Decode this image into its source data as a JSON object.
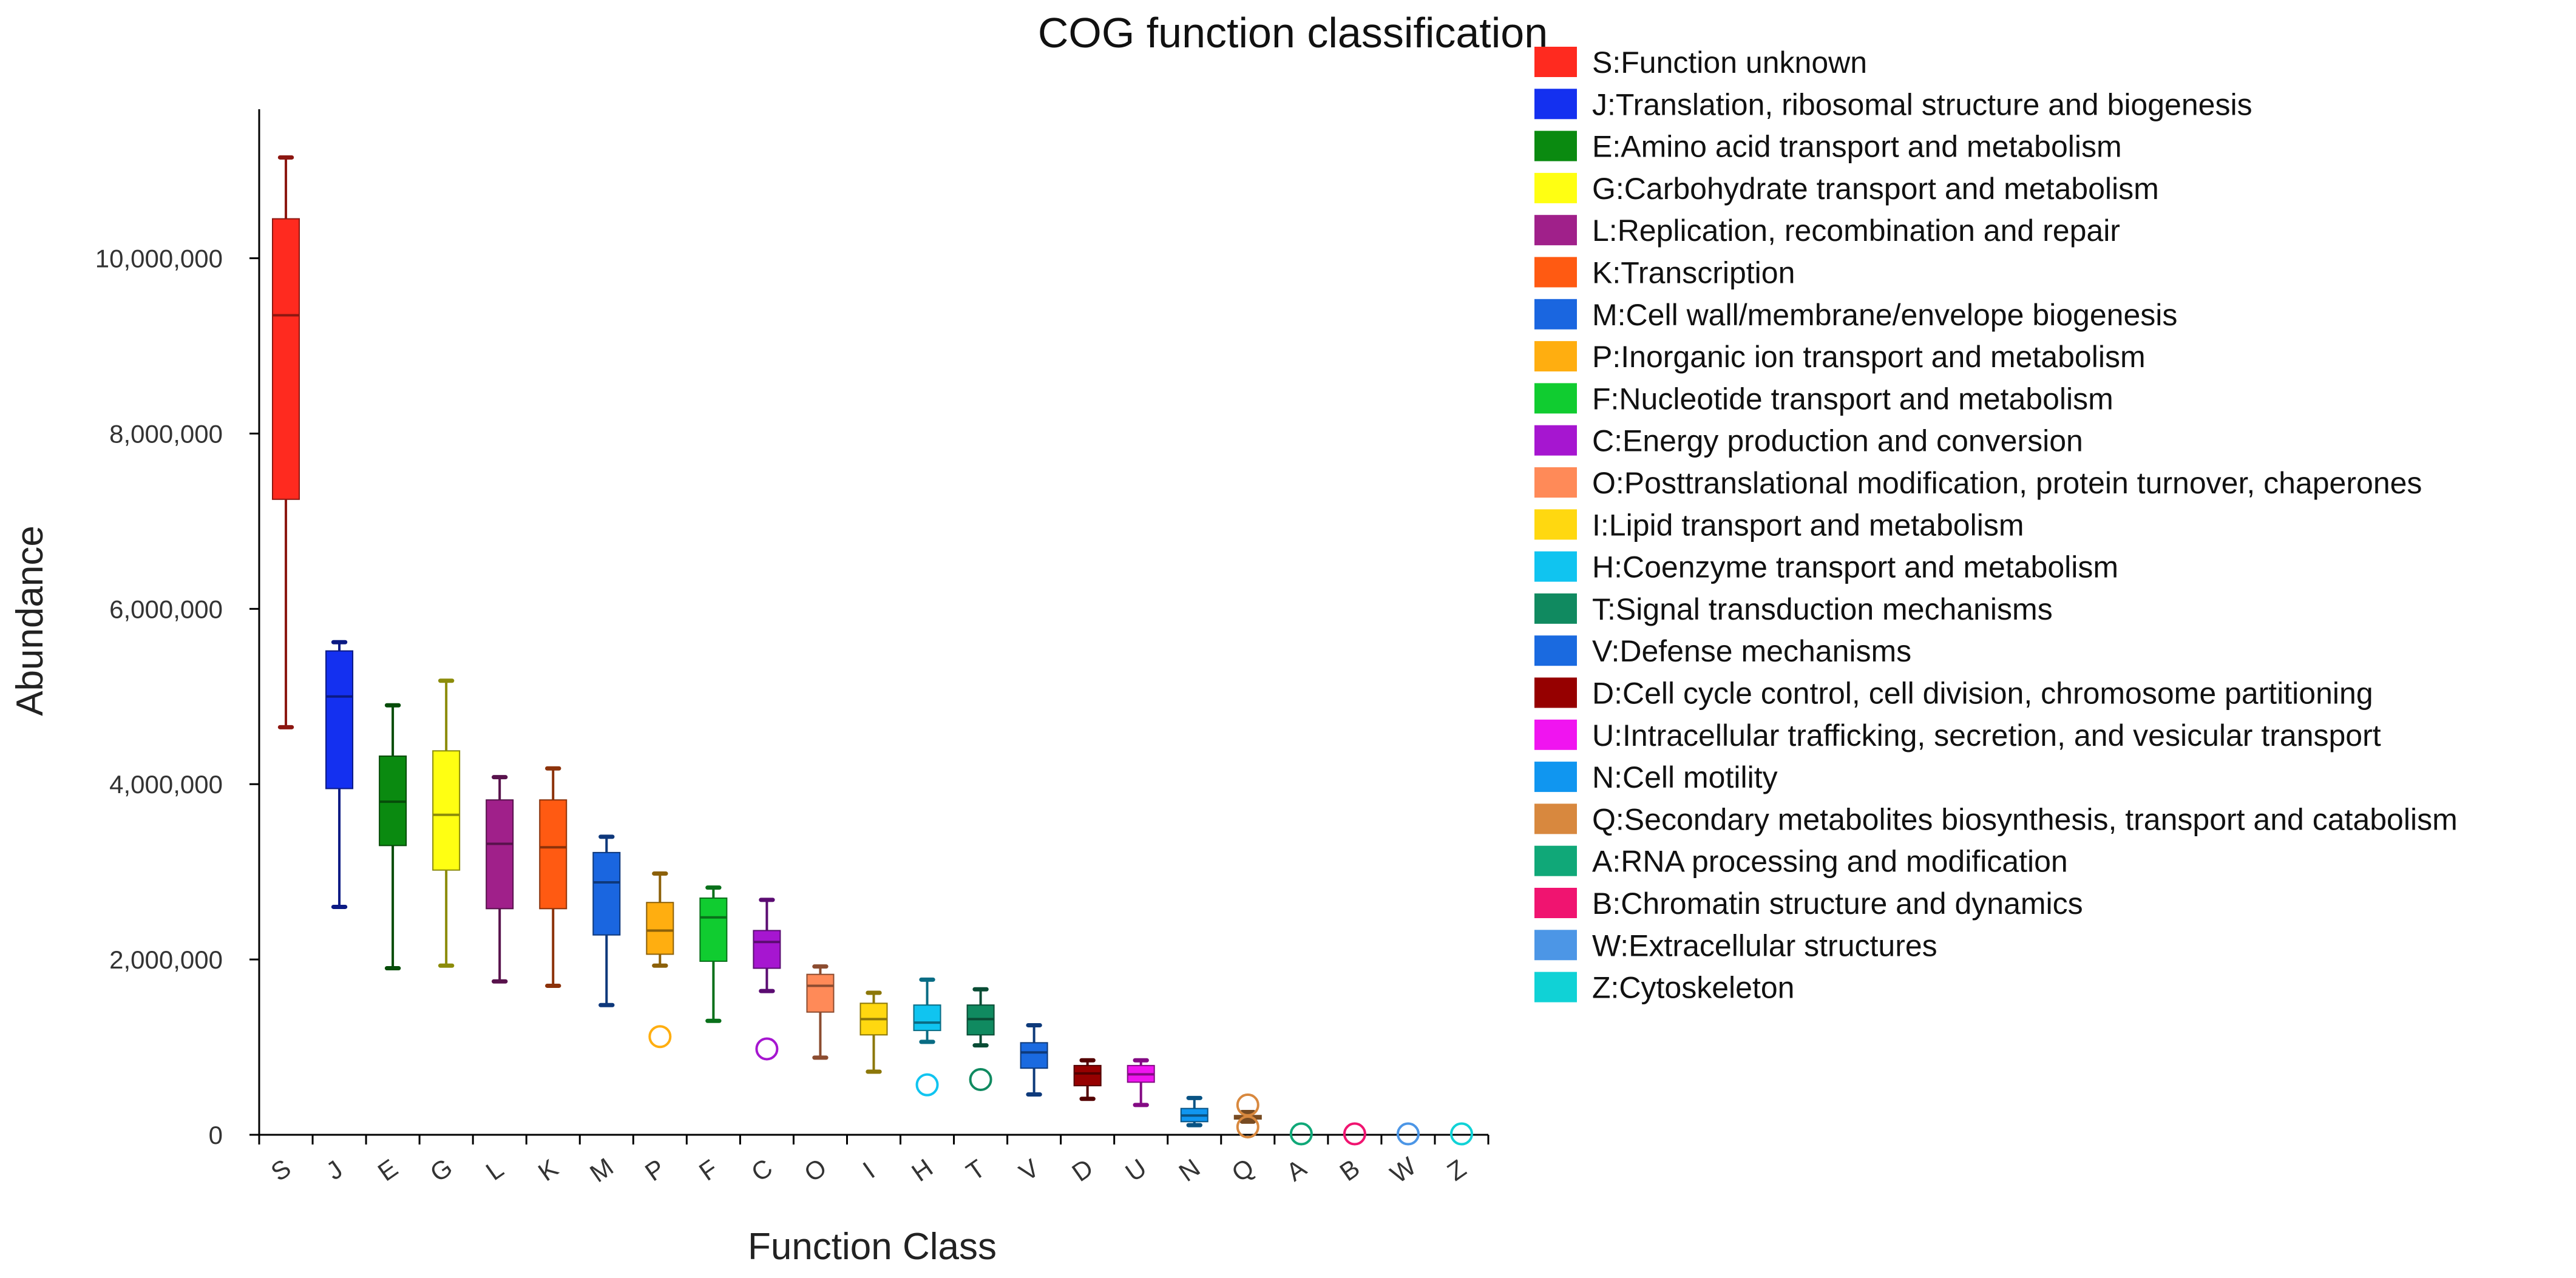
{
  "chart_data": {
    "type": "boxplot",
    "title": "COG function classification",
    "xlabel": "Function Class",
    "ylabel": "Abundance",
    "ylim": [
      0,
      11700000
    ],
    "yticks": [
      0,
      2000000,
      4000000,
      6000000,
      8000000,
      10000000
    ],
    "ytick_labels": [
      "0",
      "2,000,000",
      "4,000,000",
      "6,000,000",
      "8,000,000",
      "10,000,000"
    ],
    "grid": false,
    "legend_position": "right",
    "categories": [
      "S",
      "J",
      "E",
      "G",
      "L",
      "K",
      "M",
      "P",
      "F",
      "C",
      "O",
      "I",
      "H",
      "T",
      "V",
      "D",
      "U",
      "N",
      "Q",
      "A",
      "B",
      "W",
      "Z"
    ],
    "series": [
      {
        "code": "S",
        "label": "S:Function unknown",
        "color": "#ff2a1f",
        "min": 4650000,
        "q1": 7250000,
        "median": 9350000,
        "q3": 10450000,
        "max": 11150000,
        "outliers": []
      },
      {
        "code": "J",
        "label": "J:Translation, ribosomal structure and biogenesis",
        "color": "#1430f0",
        "min": 2600000,
        "q1": 3950000,
        "median": 5000000,
        "q3": 5520000,
        "max": 5620000,
        "outliers": []
      },
      {
        "code": "E",
        "label": "E:Amino acid transport and metabolism",
        "color": "#0a8a10",
        "min": 1900000,
        "q1": 3300000,
        "median": 3800000,
        "q3": 4320000,
        "max": 4900000,
        "outliers": []
      },
      {
        "code": "G",
        "label": "G:Carbohydrate transport and metabolism",
        "color": "#ffff12",
        "min": 1930000,
        "q1": 3020000,
        "median": 3650000,
        "q3": 4380000,
        "max": 5180000,
        "outliers": []
      },
      {
        "code": "L",
        "label": "L:Replication, recombination and repair",
        "color": "#a0208a",
        "min": 1750000,
        "q1": 2580000,
        "median": 3320000,
        "q3": 3820000,
        "max": 4080000,
        "outliers": []
      },
      {
        "code": "K",
        "label": "K:Transcription",
        "color": "#ff5a12",
        "min": 1700000,
        "q1": 2580000,
        "median": 3280000,
        "q3": 3820000,
        "max": 4180000,
        "outliers": []
      },
      {
        "code": "M",
        "label": "M:Cell wall/membrane/envelope biogenesis",
        "color": "#1a66e0",
        "min": 1480000,
        "q1": 2280000,
        "median": 2880000,
        "q3": 3220000,
        "max": 3400000,
        "outliers": []
      },
      {
        "code": "P",
        "label": "P:Inorganic ion transport and metabolism",
        "color": "#ffae10",
        "min": 1930000,
        "q1": 2060000,
        "median": 2330000,
        "q3": 2650000,
        "max": 2980000,
        "outliers": [
          1120000
        ]
      },
      {
        "code": "F",
        "label": "F:Nucleotide transport and metabolism",
        "color": "#10cc30",
        "min": 1300000,
        "q1": 1980000,
        "median": 2480000,
        "q3": 2700000,
        "max": 2820000,
        "outliers": []
      },
      {
        "code": "C",
        "label": "C:Energy production and conversion",
        "color": "#a616d0",
        "min": 1640000,
        "q1": 1900000,
        "median": 2200000,
        "q3": 2330000,
        "max": 2680000,
        "outliers": [
          980000
        ]
      },
      {
        "code": "O",
        "label": "O:Posttranslational modification, protein turnover, chaperones",
        "color": "#ff8a58",
        "min": 880000,
        "q1": 1400000,
        "median": 1700000,
        "q3": 1830000,
        "max": 1920000,
        "outliers": []
      },
      {
        "code": "I",
        "label": "I:Lipid transport and metabolism",
        "color": "#ffd810",
        "min": 720000,
        "q1": 1140000,
        "median": 1320000,
        "q3": 1500000,
        "max": 1620000,
        "outliers": []
      },
      {
        "code": "H",
        "label": "H:Coenzyme transport and metabolism",
        "color": "#10c4f0",
        "min": 1060000,
        "q1": 1190000,
        "median": 1280000,
        "q3": 1480000,
        "max": 1770000,
        "outliers": [
          570000
        ]
      },
      {
        "code": "T",
        "label": "T:Signal transduction mechanisms",
        "color": "#108a60",
        "min": 1020000,
        "q1": 1140000,
        "median": 1320000,
        "q3": 1480000,
        "max": 1660000,
        "outliers": [
          630000
        ]
      },
      {
        "code": "V",
        "label": "V:Defense mechanisms",
        "color": "#1a6ae0",
        "min": 460000,
        "q1": 760000,
        "median": 940000,
        "q3": 1050000,
        "max": 1250000,
        "outliers": []
      },
      {
        "code": "D",
        "label": "D:Cell cycle control, cell division, chromosome partitioning",
        "color": "#960000",
        "min": 410000,
        "q1": 560000,
        "median": 700000,
        "q3": 790000,
        "max": 850000,
        "outliers": []
      },
      {
        "code": "U",
        "label": "U:Intracellular trafficking, secretion, and vesicular transport",
        "color": "#f014f0",
        "min": 340000,
        "q1": 600000,
        "median": 690000,
        "q3": 790000,
        "max": 850000,
        "outliers": []
      },
      {
        "code": "N",
        "label": "N:Cell motility",
        "color": "#1096f0",
        "min": 110000,
        "q1": 150000,
        "median": 220000,
        "q3": 300000,
        "max": 420000,
        "outliers": []
      },
      {
        "code": "Q",
        "label": "Q:Secondary metabolites biosynthesis, transport and catabolism",
        "color": "#d8883e",
        "min": 150000,
        "q1": 180000,
        "median": 200000,
        "q3": 220000,
        "max": 260000,
        "outliers": [
          340000,
          90000
        ]
      },
      {
        "code": "A",
        "label": "A:RNA processing and modification",
        "color": "#10a878",
        "min": 10000,
        "q1": 10000,
        "median": 10000,
        "q3": 10000,
        "max": 10000,
        "outliers": [
          10000
        ]
      },
      {
        "code": "B",
        "label": "B:Chromatin structure and dynamics",
        "color": "#f01470",
        "min": 10000,
        "q1": 10000,
        "median": 10000,
        "q3": 10000,
        "max": 10000,
        "outliers": [
          10000
        ]
      },
      {
        "code": "W",
        "label": "W:Extracellular structures",
        "color": "#4c96e6",
        "min": 10000,
        "q1": 10000,
        "median": 10000,
        "q3": 10000,
        "max": 10000,
        "outliers": [
          10000
        ]
      },
      {
        "code": "Z",
        "label": "Z:Cytoskeleton",
        "color": "#10d2d6",
        "min": 10000,
        "q1": 10000,
        "median": 10000,
        "q3": 10000,
        "max": 10000,
        "outliers": [
          10000
        ]
      }
    ]
  }
}
